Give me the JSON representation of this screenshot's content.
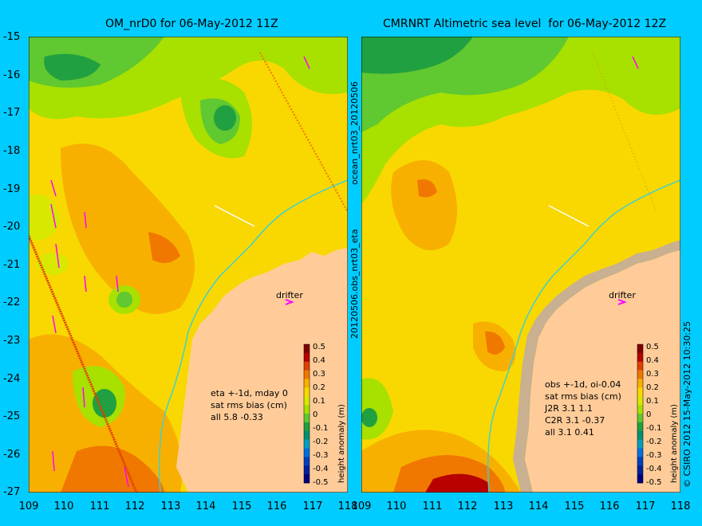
{
  "titles": {
    "left": "OM_nrD0 for 06-May-2012 11Z",
    "right": "CMRNRT Altimetric sea level  for 06-May-2012 12Z"
  },
  "axes": {
    "y_ticks": [
      "-15",
      "-16",
      "-17",
      "-18",
      "-19",
      "-20",
      "-21",
      "-22",
      "-23",
      "-24",
      "-25",
      "-26",
      "-27"
    ],
    "x_ticks": [
      "109",
      "110",
      "111",
      "112",
      "113",
      "114",
      "115",
      "116",
      "117",
      "118"
    ],
    "lon_range": [
      109,
      118
    ],
    "lat_range": [
      -27,
      -15
    ]
  },
  "colorbar": {
    "label": "height anomaly (m)",
    "ticks": [
      "0.5",
      "0.4",
      "0.3",
      "0.2",
      "0.1",
      "0",
      "-0.1",
      "-0.2",
      "-0.3",
      "-0.4",
      "-0.5"
    ],
    "colors": [
      "#800000",
      "#b80000",
      "#e04000",
      "#f07800",
      "#f8b000",
      "#f8d800",
      "#d8e800",
      "#a8e000",
      "#60c830",
      "#20a040",
      "#009070",
      "#00a0c0",
      "#0070e0",
      "#0040c0",
      "#0020a0",
      "#000080"
    ]
  },
  "left_panel": {
    "annotation": [
      "eta +-1d, mday 0",
      "sat rms bias (cm)",
      "all 5.8 -0.33"
    ],
    "drifter_label": "drifter"
  },
  "right_panel": {
    "annotation": [
      "obs +-1d, oi-0.04",
      "sat rms bias (cm)",
      "J2R   3.1 1.1",
      "C2R   3.1 -0.37",
      "all 3.1 0.41"
    ],
    "drifter_label": "drifter"
  },
  "side_labels": {
    "middle_top": "ocean_nrt03_20120506",
    "middle_bottom": "20120506.obs_nrt03_eta",
    "right": "© CSIRO 2012  15-May-2012 10:30:25"
  },
  "colors": {
    "background": "#00ccff",
    "land": "#ffcc99",
    "coast_band": "#c8b090",
    "isobath": "#40d0d0",
    "arrow": "#ff00ff"
  }
}
